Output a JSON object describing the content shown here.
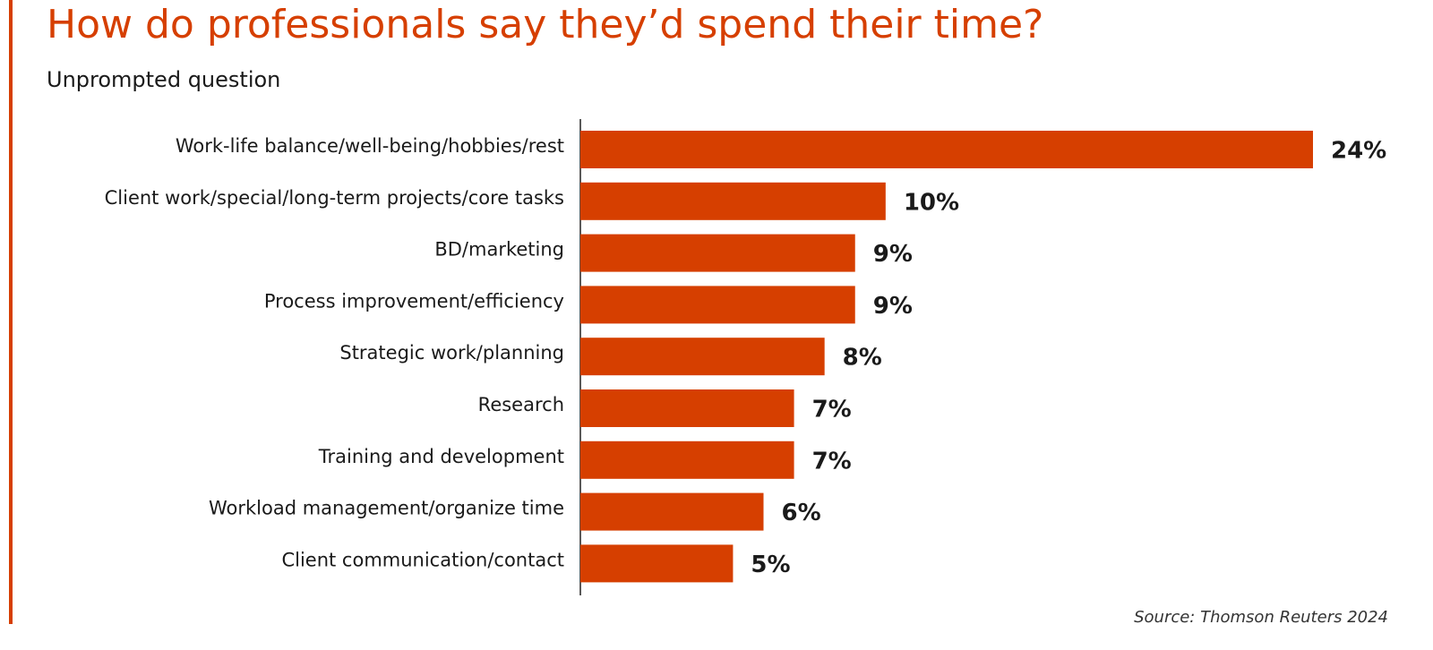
{
  "chart_data": {
    "type": "bar",
    "orientation": "horizontal",
    "title": "How do professionals say they’d spend their time?",
    "subtitle": "Unprompted question",
    "source": "Source: Thomson Reuters 2024",
    "categories": [
      "Work-life balance/well-being/hobbies/rest",
      "Client work/special/long-term projects/core tasks",
      "BD/marketing",
      "Process improvement/efficiency",
      "Strategic work/planning",
      "Research",
      "Training and development",
      "Workload management/organize time",
      "Client communication/contact"
    ],
    "values": [
      24,
      10,
      9,
      9,
      8,
      7,
      7,
      6,
      5
    ],
    "value_labels": [
      "24%",
      "10%",
      "9%",
      "9%",
      "8%",
      "7%",
      "7%",
      "6%",
      "5%"
    ],
    "color": "#d63f00"
  }
}
